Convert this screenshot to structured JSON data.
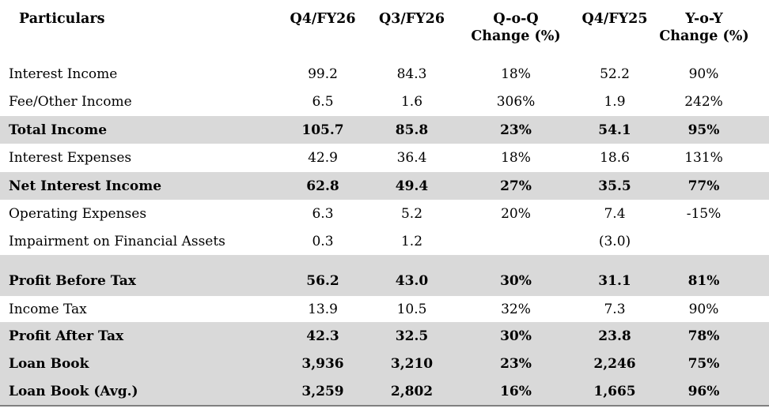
{
  "table": {
    "columns": [
      {
        "key": "particulars",
        "line1": "Particulars",
        "line2": ""
      },
      {
        "key": "q4fy26",
        "line1": "Q4/FY26",
        "line2": ""
      },
      {
        "key": "q3fy26",
        "line1": "Q3/FY26",
        "line2": ""
      },
      {
        "key": "qoq",
        "line1": "Q-o-Q",
        "line2": "Change (%)"
      },
      {
        "key": "q4fy25",
        "line1": "Q4/FY25",
        "line2": ""
      },
      {
        "key": "yoy",
        "line1": "Y-o-Y",
        "line2": "Change (%)"
      }
    ],
    "rows": [
      {
        "particulars": "Interest Income",
        "q4fy26": "99.2",
        "q3fy26": "84.3",
        "qoq": "18%",
        "q4fy25": "52.2",
        "yoy": "90%",
        "emphasis": false
      },
      {
        "particulars": "Fee/Other Income",
        "q4fy26": "6.5",
        "q3fy26": "1.6",
        "qoq": "306%",
        "q4fy25": "1.9",
        "yoy": "242%",
        "emphasis": false
      },
      {
        "particulars": "Total Income",
        "q4fy26": "105.7",
        "q3fy26": "85.8",
        "qoq": "23%",
        "q4fy25": "54.1",
        "yoy": "95%",
        "emphasis": true
      },
      {
        "particulars": "Interest Expenses",
        "q4fy26": "42.9",
        "q3fy26": "36.4",
        "qoq": "18%",
        "q4fy25": "18.6",
        "yoy": "131%",
        "emphasis": false
      },
      {
        "particulars": "Net Interest Income",
        "q4fy26": "62.8",
        "q3fy26": "49.4",
        "qoq": "27%",
        "q4fy25": "35.5",
        "yoy": "77%",
        "emphasis": true
      },
      {
        "particulars": "Operating Expenses",
        "q4fy26": "6.3",
        "q3fy26": "5.2",
        "qoq": "20%",
        "q4fy25": "7.4",
        "yoy": "-15%",
        "emphasis": false
      },
      {
        "particulars": "Impairment on Financial Assets",
        "q4fy26": "0.3",
        "q3fy26": "1.2",
        "qoq": "",
        "q4fy25": "(3.0)",
        "yoy": "",
        "emphasis": false
      },
      {
        "particulars": "Profit Before Tax",
        "q4fy26": "56.2",
        "q3fy26": "43.0",
        "qoq": "30%",
        "q4fy25": "31.1",
        "yoy": "81%",
        "emphasis": true
      },
      {
        "particulars": "Income Tax",
        "q4fy26": "13.9",
        "q3fy26": "10.5",
        "qoq": "32%",
        "q4fy25": "7.3",
        "yoy": "90%",
        "emphasis": false
      },
      {
        "particulars": "Profit After Tax",
        "q4fy26": "42.3",
        "q3fy26": "32.5",
        "qoq": "30%",
        "q4fy25": "23.8",
        "yoy": "78%",
        "emphasis": true
      },
      {
        "particulars": "Loan Book",
        "q4fy26": "3,936",
        "q3fy26": "3,210",
        "qoq": "23%",
        "q4fy25": "2,246",
        "yoy": "75%",
        "emphasis": true
      },
      {
        "particulars": "Loan Book (Avg.)",
        "q4fy26": "3,259",
        "q3fy26": "2,802",
        "qoq": "16%",
        "q4fy25": "1,665",
        "yoy": "96%",
        "emphasis": true
      }
    ]
  },
  "colors": {
    "row_highlight": "#d9d9d9",
    "bottom_border": "#808080",
    "text": "#000000",
    "background": "#ffffff"
  }
}
